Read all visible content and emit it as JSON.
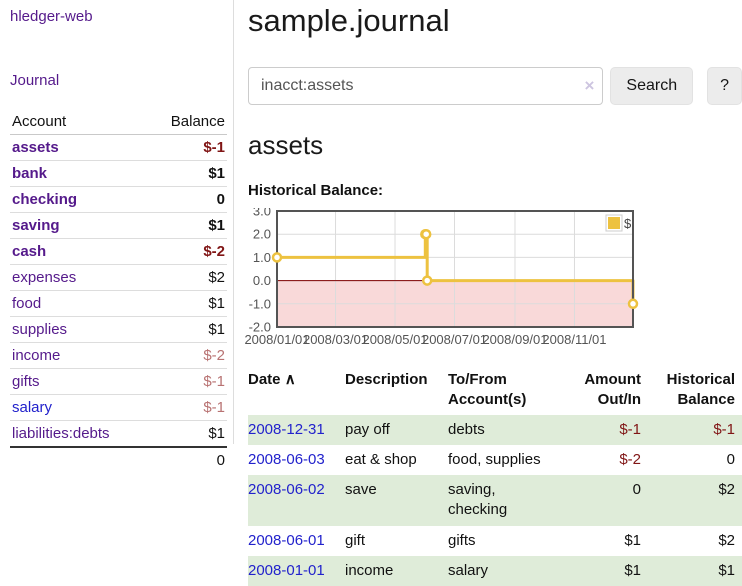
{
  "app": {
    "brand": "hledger-web"
  },
  "colors": {
    "link_purple": "#551a8b",
    "link_blue": "#2222cc",
    "negative_strong": "#801515",
    "negative_soft": "#b87272",
    "row_shade_green": "#dfecd9",
    "chart_series_gold": "#edc240",
    "chart_negative_region": "#f9d9d9",
    "chart_zero_line": "#800000"
  },
  "sidebar": {
    "journal_link": "Journal",
    "headers": [
      "Account",
      "Balance"
    ],
    "accounts": [
      {
        "name": "assets",
        "balance": "$-1"
      },
      {
        "name": "bank",
        "balance": "$1"
      },
      {
        "name": "checking",
        "balance": "0"
      },
      {
        "name": "saving",
        "balance": "$1"
      },
      {
        "name": "cash",
        "balance": "$-2"
      },
      {
        "name": "expenses",
        "balance": "$2"
      },
      {
        "name": "food",
        "balance": "$1"
      },
      {
        "name": "supplies",
        "balance": "$1"
      },
      {
        "name": "income",
        "balance": "$-2"
      },
      {
        "name": "gifts",
        "balance": "$-1"
      },
      {
        "name": "salary",
        "balance": "$-1"
      },
      {
        "name": "liabilities:debts",
        "balance": "$1"
      }
    ],
    "total": "0"
  },
  "header": {
    "title": "sample.journal"
  },
  "search": {
    "value": "inacct:assets",
    "clear_icon": "×",
    "button_label": "Search",
    "help_label": "?"
  },
  "account_page": {
    "heading": "assets"
  },
  "chart_data": {
    "type": "line",
    "step": true,
    "title": "Historical Balance:",
    "series": [
      {
        "name": "$",
        "color": "#edc240",
        "points": [
          [
            "2008-01-01",
            1
          ],
          [
            "2008-06-01",
            2
          ],
          [
            "2008-06-02",
            2
          ],
          [
            "2008-06-03",
            0
          ],
          [
            "2008-12-31",
            -1
          ]
        ]
      }
    ],
    "x_range": [
      "2008-01-01",
      "2008-12-31"
    ],
    "x_ticks": [
      "2008/01/01",
      "2008/03/01",
      "2008/05/01",
      "2008/07/01",
      "2008/09/01",
      "2008/11/01"
    ],
    "y_ticks": [
      3.0,
      2.0,
      1.0,
      0.0,
      -1.0,
      -2.0
    ],
    "ylim": [
      -2,
      3
    ],
    "grid": true,
    "negative_fill": "#f9d9d9",
    "zero_line_color": "#800000",
    "legend": {
      "label": "$",
      "position": "top-right"
    }
  },
  "register": {
    "headers": [
      "Date",
      "Description",
      "To/From Account(s)",
      "Amount Out/In",
      "Historical Balance"
    ],
    "sort_icon": "∧",
    "rows": [
      {
        "date": "2008-12-31",
        "description": "pay off",
        "accounts": "debts",
        "amount": "$-1",
        "balance": "$-1"
      },
      {
        "date": "2008-06-03",
        "description": "eat & shop",
        "accounts": "food, supplies",
        "amount": "$-2",
        "balance": "0"
      },
      {
        "date": "2008-06-02",
        "description": "save",
        "accounts": "saving, checking",
        "amount": "0",
        "balance": "$2"
      },
      {
        "date": "2008-06-01",
        "description": "gift",
        "accounts": "gifts",
        "amount": "$1",
        "balance": "$2"
      },
      {
        "date": "2008-01-01",
        "description": "income",
        "accounts": "salary",
        "amount": "$1",
        "balance": "$1"
      }
    ]
  }
}
